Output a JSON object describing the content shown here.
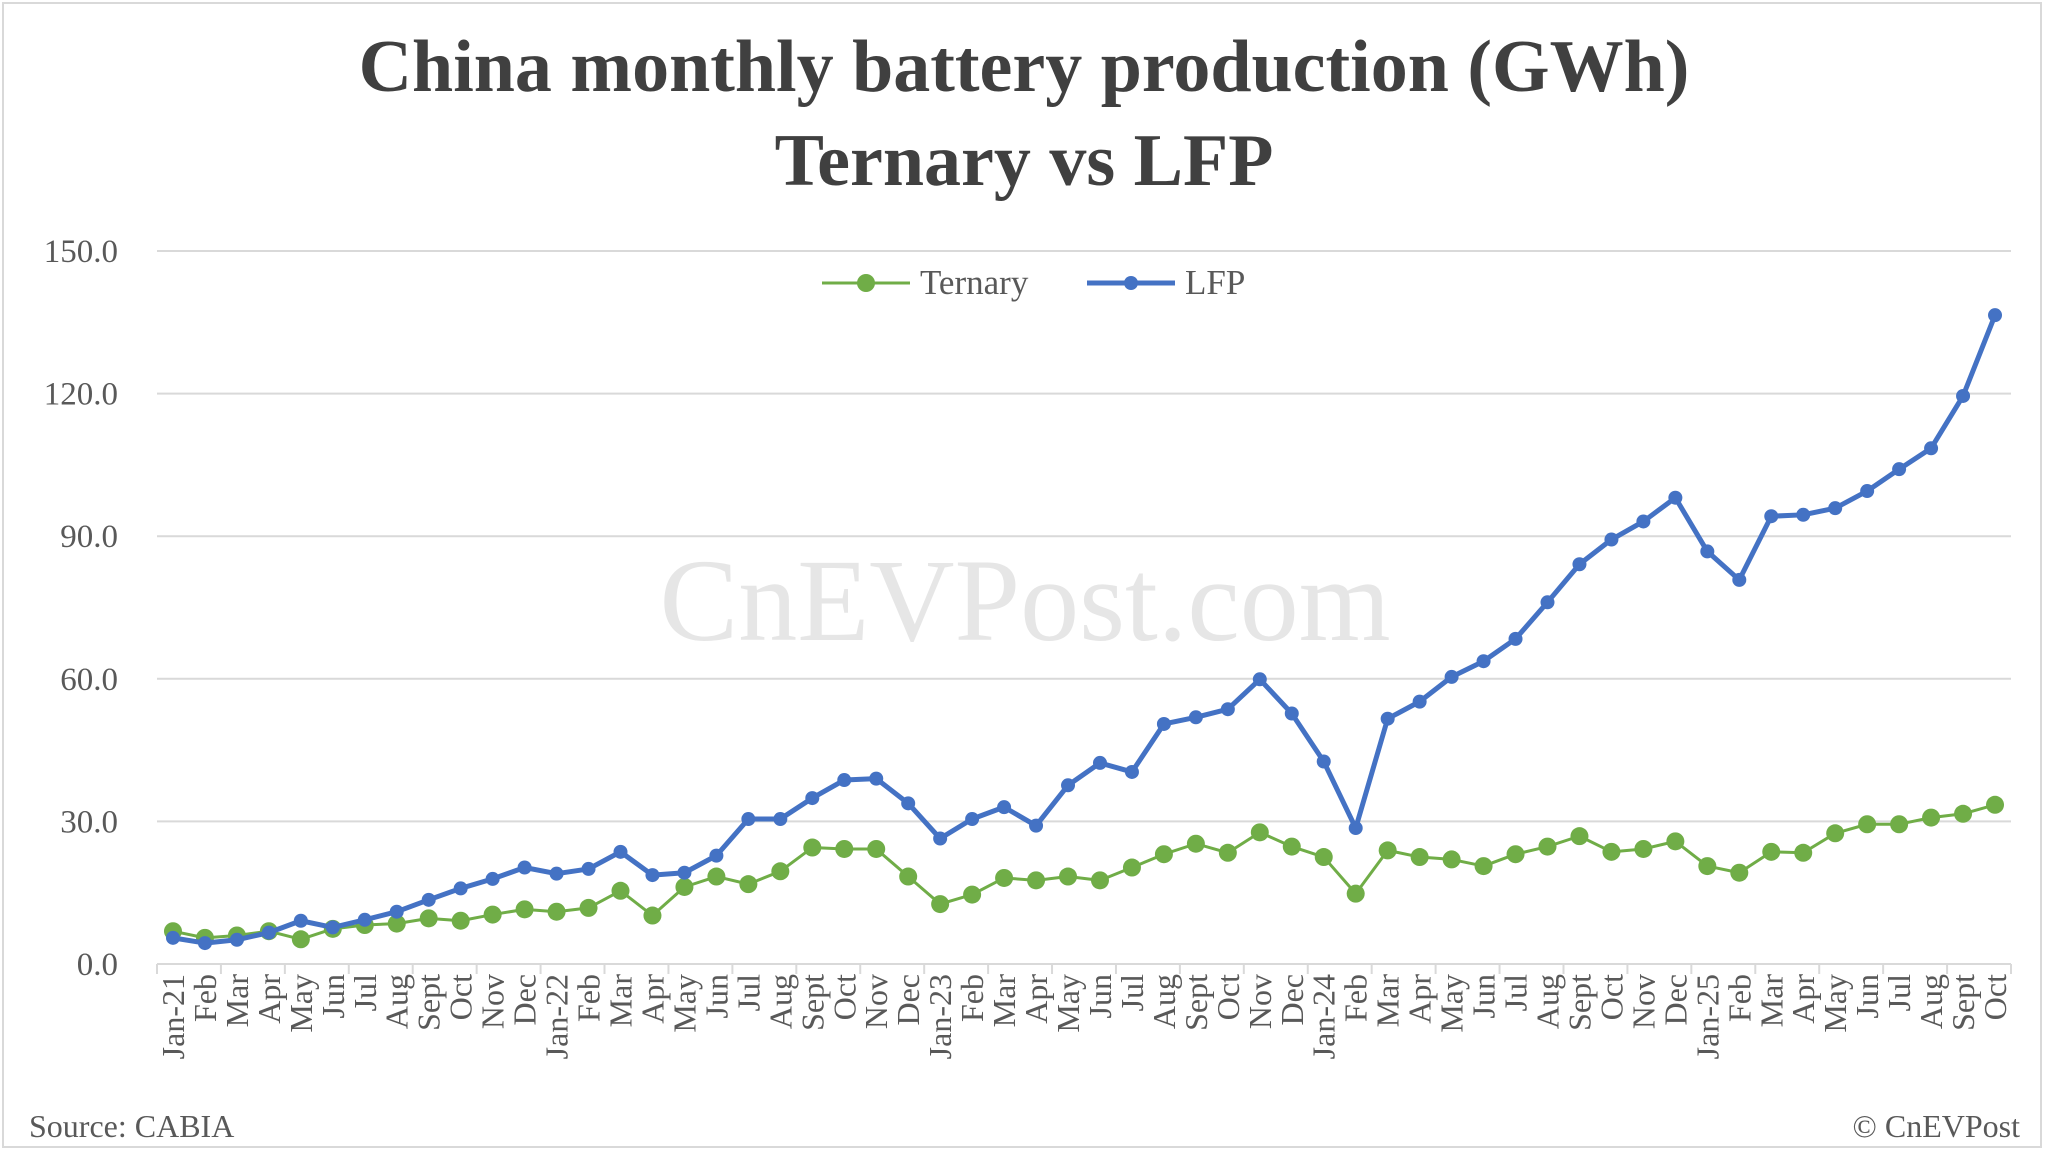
{
  "chart_data": {
    "type": "line",
    "title": "China monthly battery production (GWh)",
    "subtitle": "Ternary vs LFP",
    "xlabel": "",
    "ylabel": "",
    "ylim": [
      0,
      150
    ],
    "yticks": [
      "0.0",
      "30.0",
      "60.0",
      "90.0",
      "120.0",
      "150.0"
    ],
    "grid": true,
    "legend_position": "top-center",
    "categories": [
      "Jan-21",
      "Feb",
      "Mar",
      "Apr",
      "May",
      "Jun",
      "Jul",
      "Aug",
      "Sept",
      "Oct",
      "Nov",
      "Dec",
      "Jan-22",
      "Feb",
      "Mar",
      "Apr",
      "May",
      "Jun",
      "Jul",
      "Aug",
      "Sept",
      "Oct",
      "Nov",
      "Dec",
      "Jan-23",
      "Feb",
      "Mar",
      "Apr",
      "May",
      "Jun",
      "Jul",
      "Aug",
      "Sept",
      "Oct",
      "Nov",
      "Dec",
      "Jan-24",
      "Feb",
      "Mar",
      "Apr",
      "May",
      "Jun",
      "Jul",
      "Aug",
      "Sept",
      "Oct",
      "Nov",
      "Dec",
      "Jan-25",
      "Feb",
      "Mar",
      "Apr",
      "May",
      "Jun",
      "Jul",
      "Aug",
      "Sept",
      "Oct"
    ],
    "series": [
      {
        "name": "Ternary",
        "color": "#70ad47",
        "values": [
          6.9,
          5.5,
          6.0,
          6.9,
          5.2,
          7.4,
          8.2,
          8.5,
          9.6,
          9.1,
          10.4,
          11.5,
          11.0,
          11.8,
          15.4,
          10.2,
          16.2,
          18.4,
          16.8,
          19.5,
          24.5,
          24.2,
          24.2,
          18.4,
          12.6,
          14.6,
          18.1,
          17.6,
          18.4,
          17.6,
          20.3,
          23.1,
          25.3,
          23.4,
          27.7,
          24.7,
          22.5,
          14.8,
          23.9,
          22.5,
          22.0,
          20.6,
          23.1,
          24.7,
          26.9,
          23.6,
          24.2,
          25.8,
          20.6,
          19.2,
          23.6,
          23.4,
          27.5,
          29.4,
          29.4,
          30.8,
          31.6,
          33.5
        ]
      },
      {
        "name": "LFP",
        "color": "#4472c4",
        "values": [
          5.5,
          4.4,
          5.1,
          6.6,
          9.1,
          7.7,
          9.3,
          11.0,
          13.5,
          15.9,
          17.9,
          20.3,
          19.0,
          20.0,
          23.6,
          18.7,
          19.2,
          22.8,
          30.5,
          30.5,
          34.9,
          38.7,
          39.0,
          33.8,
          26.4,
          30.5,
          33.0,
          29.1,
          37.6,
          42.3,
          40.4,
          50.5,
          51.9,
          53.6,
          59.9,
          52.7,
          42.6,
          28.6,
          51.6,
          55.2,
          60.4,
          63.7,
          68.4,
          76.1,
          84.1,
          89.3,
          93.1,
          98.1,
          86.8,
          80.8,
          94.2,
          94.5,
          95.9,
          99.5,
          104.1,
          108.5,
          119.5,
          136.5
        ]
      }
    ]
  },
  "watermark": "CnEVPost.com",
  "source": "Source: CABIA",
  "copyright": "© CnEVPost"
}
